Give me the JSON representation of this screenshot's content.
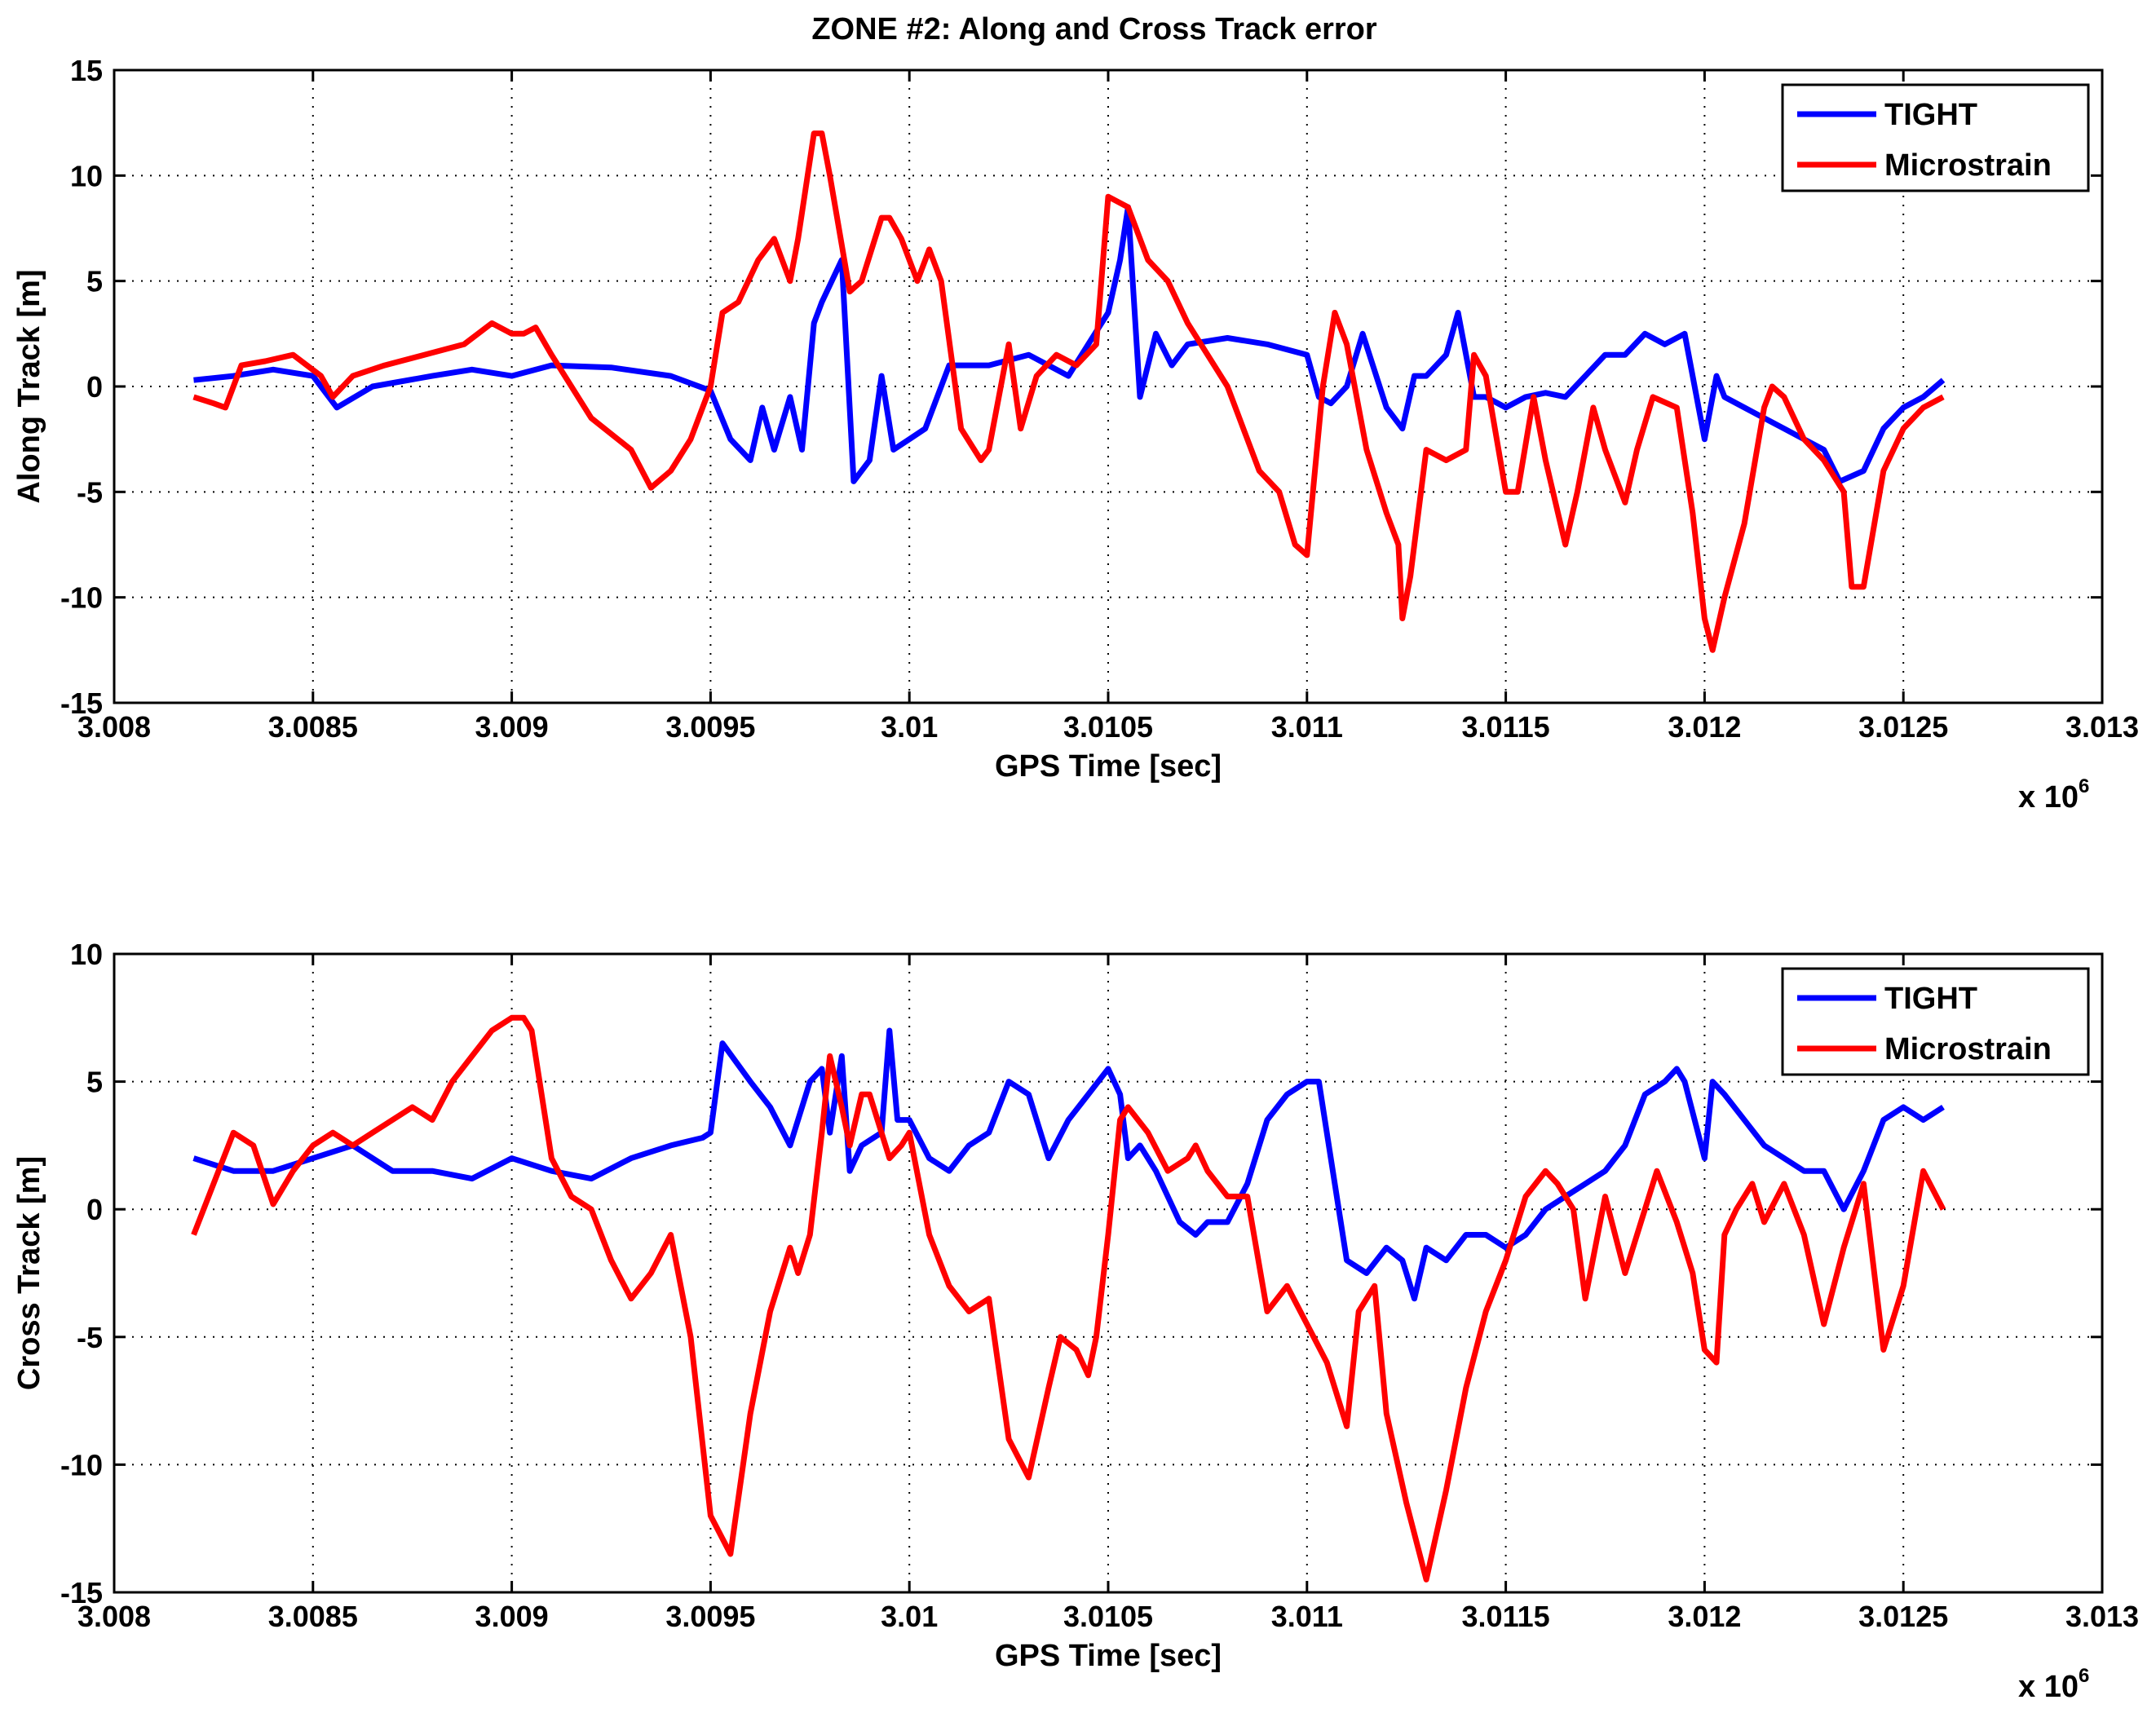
{
  "figure_title": "ZONE #2: Along and Cross Track error",
  "colors": {
    "TIGHT": "#0000ff",
    "Microstrain": "#ff0000",
    "grid": "#000000"
  },
  "chart_data": [
    {
      "type": "line",
      "title": "ZONE #2: Along and Cross Track error",
      "xlabel": "GPS Time [sec]",
      "ylabel": "Along Track [m]",
      "x_exponent_label": "x 10",
      "x_exponent_power": "6",
      "xlim": [
        3.008,
        3.013
      ],
      "ylim": [
        -15,
        15
      ],
      "xticks": [
        3.008,
        3.0085,
        3.009,
        3.0095,
        3.01,
        3.0105,
        3.011,
        3.0115,
        3.012,
        3.0125,
        3.013
      ],
      "xtick_labels": [
        "3.008",
        "3.0085",
        "3.009",
        "3.0095",
        "3.01",
        "3.0105",
        "3.011",
        "3.0115",
        "3.012",
        "3.0125",
        "3.013"
      ],
      "yticks": [
        -15,
        -10,
        -5,
        0,
        5,
        10,
        15
      ],
      "ytick_labels": [
        "-15",
        "-10",
        "-5",
        "0",
        "5",
        "10",
        "15"
      ],
      "grid": true,
      "legend_position": "top-right",
      "series": [
        {
          "name": "TIGHT",
          "x": [
            3.0082,
            3.0083,
            3.0084,
            3.0085,
            3.00856,
            3.00865,
            3.0088,
            3.0089,
            3.009,
            3.0091,
            3.00925,
            3.0094,
            3.0095,
            3.00955,
            3.0096,
            3.00963,
            3.00966,
            3.0097,
            3.00973,
            3.00976,
            3.00978,
            3.00983,
            3.00986,
            3.0099,
            3.00993,
            3.00996,
            3.01,
            3.01004,
            3.0101,
            3.0102,
            3.0103,
            3.01035,
            3.0104,
            3.01045,
            3.0105,
            3.01053,
            3.01055,
            3.01058,
            3.01062,
            3.01066,
            3.0107,
            3.0108,
            3.0109,
            3.011,
            3.01103,
            3.01106,
            3.0111,
            3.01114,
            3.0112,
            3.01124,
            3.01127,
            3.0113,
            3.01135,
            3.01138,
            3.01142,
            3.01145,
            3.0115,
            3.01155,
            3.0116,
            3.01165,
            3.0117,
            3.01175,
            3.0118,
            3.01185,
            3.0119,
            3.01195,
            3.012,
            3.01203,
            3.01205,
            3.0121,
            3.0122,
            3.01225,
            3.0123,
            3.01234,
            3.0124,
            3.01245,
            3.0125,
            3.01255,
            3.0126
          ],
          "y": [
            0.3,
            0.5,
            0.8,
            0.5,
            -1.0,
            0.0,
            0.5,
            0.8,
            0.5,
            1.0,
            0.9,
            0.5,
            -0.2,
            -2.5,
            -3.5,
            -1.0,
            -3.0,
            -0.5,
            -3.0,
            3.0,
            4.0,
            6.0,
            -4.5,
            -3.5,
            0.5,
            -3.0,
            -2.5,
            -2.0,
            1.0,
            1.0,
            1.5,
            1.0,
            0.5,
            2.0,
            3.5,
            6.0,
            8.5,
            -0.5,
            2.5,
            1.0,
            2.0,
            2.3,
            2.0,
            1.5,
            -0.5,
            -0.8,
            0.0,
            2.5,
            -1.0,
            -2.0,
            0.5,
            0.5,
            1.5,
            3.5,
            -0.5,
            -0.5,
            -1.0,
            -0.5,
            -0.3,
            -0.5,
            0.5,
            1.5,
            1.5,
            2.5,
            2.0,
            2.5,
            -2.5,
            0.5,
            -0.5,
            -1.0,
            -2.0,
            -2.5,
            -3.0,
            -4.5,
            -4.0,
            -2.0,
            -1.0,
            -0.5,
            0.3
          ]
        },
        {
          "name": "Microstrain",
          "x": [
            3.0082,
            3.00825,
            3.00828,
            3.00832,
            3.00838,
            3.00845,
            3.00852,
            3.00855,
            3.0086,
            3.00868,
            3.00878,
            3.00888,
            3.00895,
            3.009,
            3.00903,
            3.00906,
            3.0091,
            3.0092,
            3.0093,
            3.00935,
            3.0094,
            3.00945,
            3.0095,
            3.00953,
            3.00957,
            3.00962,
            3.00966,
            3.0097,
            3.00972,
            3.00976,
            3.00978,
            3.0098,
            3.00985,
            3.00988,
            3.00993,
            3.00995,
            3.00998,
            3.01002,
            3.01005,
            3.01008,
            3.01013,
            3.01018,
            3.0102,
            3.01025,
            3.01028,
            3.01032,
            3.01037,
            3.01042,
            3.01047,
            3.0105,
            3.01055,
            3.0106,
            3.01065,
            3.0107,
            3.0108,
            3.01088,
            3.01093,
            3.01097,
            3.011,
            3.01104,
            3.01107,
            3.0111,
            3.01115,
            3.0112,
            3.01123,
            3.01124,
            3.01126,
            3.0113,
            3.01135,
            3.0114,
            3.01142,
            3.01145,
            3.0115,
            3.01153,
            3.01157,
            3.0116,
            3.01165,
            3.01168,
            3.01172,
            3.01175,
            3.0118,
            3.01183,
            3.01187,
            3.01193,
            3.01197,
            3.012,
            3.01202,
            3.01205,
            3.0121,
            3.01215,
            3.01217,
            3.0122,
            3.01225,
            3.0123,
            3.01235,
            3.01237,
            3.0124,
            3.01245,
            3.0125,
            3.01255,
            3.0126
          ],
          "y": [
            -0.5,
            -0.8,
            -1.0,
            1.0,
            1.2,
            1.5,
            0.5,
            -0.5,
            0.5,
            1.0,
            1.5,
            2.0,
            3.0,
            2.5,
            2.5,
            2.8,
            1.5,
            -1.5,
            -3.0,
            -4.8,
            -4.0,
            -2.5,
            0.0,
            3.5,
            4.0,
            6.0,
            7.0,
            5.0,
            7.0,
            12.0,
            12.0,
            10.0,
            4.5,
            5.0,
            8.0,
            8.0,
            7.0,
            5.0,
            6.5,
            5.0,
            -2.0,
            -3.5,
            -3.0,
            2.0,
            -2.0,
            0.5,
            1.5,
            1.0,
            2.0,
            9.0,
            8.5,
            6.0,
            5.0,
            3.0,
            0.0,
            -4.0,
            -5.0,
            -7.5,
            -8.0,
            0.0,
            3.5,
            2.0,
            -3.0,
            -6.0,
            -7.5,
            -11.0,
            -9.0,
            -3.0,
            -3.5,
            -3.0,
            1.5,
            0.5,
            -5.0,
            -5.0,
            -0.5,
            -3.5,
            -7.5,
            -5.0,
            -1.0,
            -3.0,
            -5.5,
            -3.0,
            -0.5,
            -1.0,
            -6.0,
            -11.0,
            -12.5,
            -10.0,
            -6.5,
            -1.0,
            0.0,
            -0.5,
            -2.5,
            -3.5,
            -5.0,
            -9.5,
            -9.5,
            -4.0,
            -2.0,
            -1.0,
            -0.5
          ]
        }
      ]
    },
    {
      "type": "line",
      "title": "",
      "xlabel": "GPS Time [sec]",
      "ylabel": "Cross Track [m]",
      "x_exponent_label": "x 10",
      "x_exponent_power": "6",
      "xlim": [
        3.008,
        3.013
      ],
      "ylim": [
        -15,
        10
      ],
      "xticks": [
        3.008,
        3.0085,
        3.009,
        3.0095,
        3.01,
        3.0105,
        3.011,
        3.0115,
        3.012,
        3.0125,
        3.013
      ],
      "xtick_labels": [
        "3.008",
        "3.0085",
        "3.009",
        "3.0095",
        "3.01",
        "3.0105",
        "3.011",
        "3.0115",
        "3.012",
        "3.0125",
        "3.013"
      ],
      "yticks": [
        -15,
        -10,
        -5,
        0,
        5,
        10
      ],
      "ytick_labels": [
        "-15",
        "-10",
        "-5",
        "0",
        "5",
        "10"
      ],
      "grid": true,
      "legend_position": "top-right",
      "series": [
        {
          "name": "TIGHT",
          "x": [
            3.0082,
            3.0083,
            3.0084,
            3.0085,
            3.0086,
            3.0087,
            3.0088,
            3.0089,
            3.009,
            3.0091,
            3.0092,
            3.0093,
            3.0094,
            3.00948,
            3.0095,
            3.00953,
            3.0096,
            3.00965,
            3.0097,
            3.00975,
            3.00978,
            3.0098,
            3.00983,
            3.00985,
            3.00988,
            3.00993,
            3.00995,
            3.00997,
            3.01,
            3.01005,
            3.0101,
            3.01015,
            3.0102,
            3.01025,
            3.0103,
            3.01035,
            3.0104,
            3.01045,
            3.0105,
            3.01053,
            3.01055,
            3.01058,
            3.01062,
            3.01068,
            3.01072,
            3.01075,
            3.0108,
            3.01085,
            3.0109,
            3.01095,
            3.011,
            3.01102,
            3.01103,
            3.01108,
            3.0111,
            3.01115,
            3.0112,
            3.01124,
            3.01127,
            3.0113,
            3.01135,
            3.0114,
            3.01145,
            3.0115,
            3.01155,
            3.0116,
            3.01165,
            3.0117,
            3.01175,
            3.0118,
            3.01185,
            3.0119,
            3.01193,
            3.01195,
            3.012,
            3.01202,
            3.01205,
            3.0121,
            3.01215,
            3.0122,
            3.01225,
            3.0123,
            3.01235,
            3.0124,
            3.01245,
            3.0125,
            3.01255,
            3.0126
          ],
          "y": [
            2.0,
            1.5,
            1.5,
            2.0,
            2.5,
            1.5,
            1.5,
            1.2,
            2.0,
            1.5,
            1.2,
            2.0,
            2.5,
            2.8,
            3.0,
            6.5,
            5.0,
            4.0,
            2.5,
            5.0,
            5.5,
            3.0,
            6.0,
            1.5,
            2.5,
            3.0,
            7.0,
            3.5,
            3.5,
            2.0,
            1.5,
            2.5,
            3.0,
            5.0,
            4.5,
            2.0,
            3.5,
            4.5,
            5.5,
            4.5,
            2.0,
            2.5,
            1.5,
            -0.5,
            -1.0,
            -0.5,
            -0.5,
            1.0,
            3.5,
            4.5,
            5.0,
            5.0,
            5.0,
            0.0,
            -2.0,
            -2.5,
            -1.5,
            -2.0,
            -3.5,
            -1.5,
            -2.0,
            -1.0,
            -1.0,
            -1.5,
            -1.0,
            0.0,
            0.5,
            1.0,
            1.5,
            2.5,
            4.5,
            5.0,
            5.5,
            5.0,
            2.0,
            5.0,
            4.5,
            3.5,
            2.5,
            2.0,
            1.5,
            1.5,
            0.0,
            1.5,
            3.5,
            4.0,
            3.5,
            4.0
          ]
        },
        {
          "name": "Microstrain",
          "x": [
            3.0082,
            3.00825,
            3.0083,
            3.00835,
            3.0084,
            3.00845,
            3.0085,
            3.00855,
            3.0086,
            3.00865,
            3.0087,
            3.00875,
            3.0088,
            3.00885,
            3.0089,
            3.00895,
            3.009,
            3.00903,
            3.00905,
            3.0091,
            3.00915,
            3.0092,
            3.00925,
            3.0093,
            3.00935,
            3.0094,
            3.00945,
            3.0095,
            3.00955,
            3.0096,
            3.00965,
            3.0097,
            3.00972,
            3.00975,
            3.00978,
            3.0098,
            3.00983,
            3.00985,
            3.00988,
            3.0099,
            3.00995,
            3.00998,
            3.01,
            3.01005,
            3.0101,
            3.01015,
            3.0102,
            3.01025,
            3.0103,
            3.01035,
            3.01038,
            3.01042,
            3.01045,
            3.01047,
            3.0105,
            3.01053,
            3.01055,
            3.0106,
            3.01065,
            3.0107,
            3.01072,
            3.01075,
            3.0108,
            3.01085,
            3.0109,
            3.01095,
            3.011,
            3.01105,
            3.0111,
            3.01113,
            3.01117,
            3.0112,
            3.01125,
            3.0113,
            3.01135,
            3.0114,
            3.01145,
            3.0115,
            3.01155,
            3.0116,
            3.01163,
            3.01167,
            3.0117,
            3.01175,
            3.0118,
            3.01185,
            3.01188,
            3.01193,
            3.01197,
            3.012,
            3.01203,
            3.01205,
            3.01208,
            3.01212,
            3.01215,
            3.0122,
            3.01225,
            3.0123,
            3.01235,
            3.0124,
            3.01245,
            3.0125,
            3.01255,
            3.0126
          ],
          "y": [
            -1.0,
            1.0,
            3.0,
            2.5,
            0.2,
            1.5,
            2.5,
            3.0,
            2.5,
            3.0,
            3.5,
            4.0,
            3.5,
            5.0,
            6.0,
            7.0,
            7.5,
            7.5,
            7.0,
            2.0,
            0.5,
            0.0,
            -2.0,
            -3.5,
            -2.5,
            -1.0,
            -5.0,
            -12.0,
            -13.5,
            -8.0,
            -4.0,
            -1.5,
            -2.5,
            -1.0,
            3.0,
            6.0,
            4.0,
            2.5,
            4.5,
            4.5,
            2.0,
            2.5,
            3.0,
            -1.0,
            -3.0,
            -4.0,
            -3.5,
            -9.0,
            -10.5,
            -7.0,
            -5.0,
            -5.5,
            -6.5,
            -5.0,
            -1.0,
            3.5,
            4.0,
            3.0,
            1.5,
            2.0,
            2.5,
            1.5,
            0.5,
            0.5,
            -4.0,
            -3.0,
            -4.5,
            -6.0,
            -8.5,
            -4.0,
            -3.0,
            -8.0,
            -11.5,
            -14.5,
            -11.0,
            -7.0,
            -4.0,
            -2.0,
            0.5,
            1.5,
            1.0,
            0.0,
            -3.5,
            0.5,
            -2.5,
            0.0,
            1.5,
            -0.5,
            -2.5,
            -5.5,
            -6.0,
            -1.0,
            0.0,
            1.0,
            -0.5,
            1.0,
            -1.0,
            -4.5,
            -1.5,
            1.0,
            -5.5,
            -3.0,
            1.5,
            0.0
          ]
        }
      ]
    }
  ]
}
